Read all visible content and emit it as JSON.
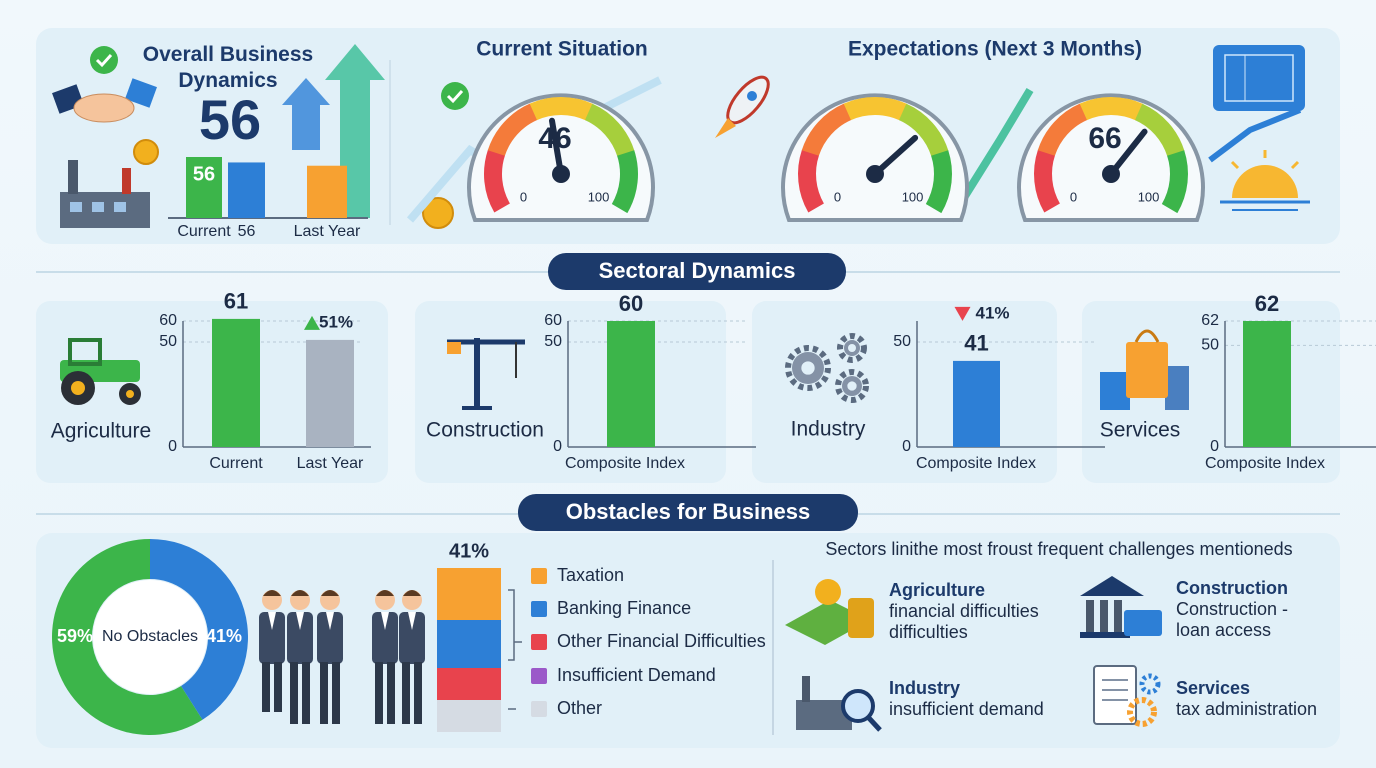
{
  "sections": {
    "sectoral": "Sectoral Dynamics"
  },
  "chart_data": [
    {
      "type": "bar",
      "title": "Overall Business Dynamics",
      "headline": "56",
      "categories": [
        "Current",
        "56",
        "Last Year"
      ],
      "values": [
        56,
        51,
        48
      ],
      "colors": [
        "#3cb54a",
        "#2d7fd6",
        "#f7a131"
      ]
    },
    {
      "type": "gauge",
      "title": "Current Situation",
      "values": [
        46
      ],
      "show_value": [
        true
      ],
      "ylim": [
        0,
        100
      ],
      "yticks": [
        0,
        100
      ]
    },
    {
      "type": "gauge",
      "title": "Expectations (Next 3 Months)",
      "values": [
        70,
        66
      ],
      "show_value": [
        false,
        true
      ],
      "ylim": [
        0,
        100
      ],
      "yticks": [
        0,
        100
      ]
    },
    {
      "type": "bar",
      "title": "Agriculture",
      "categories": [
        "Current",
        "Last Year"
      ],
      "values": [
        61,
        51
      ],
      "value_labels": [
        "61",
        "51%"
      ],
      "colors": [
        "#3cb54a",
        "#a9b3c1"
      ],
      "ylim": [
        0,
        60
      ],
      "yticks": [
        0,
        50,
        60
      ],
      "grid": true
    },
    {
      "type": "bar",
      "title": "Construction",
      "categories": [
        "Composite Index"
      ],
      "values": [
        60
      ],
      "colors": [
        "#3cb54a"
      ],
      "ylim": [
        0,
        60
      ],
      "yticks": [
        0,
        50,
        60
      ],
      "grid": true
    },
    {
      "type": "bar",
      "title": "Industry",
      "categories": [
        "Composite Index"
      ],
      "values": [
        41
      ],
      "annotation": "41%",
      "colors": [
        "#2d7fd6"
      ],
      "ylim": [
        0,
        60
      ],
      "yticks": [
        0,
        50
      ],
      "grid": true
    },
    {
      "type": "bar",
      "title": "Services",
      "categories": [
        "Composite Index"
      ],
      "values": [
        62
      ],
      "colors": [
        "#3cb54a"
      ],
      "ylim": [
        0,
        62
      ],
      "yticks": [
        0,
        50,
        62
      ],
      "grid": true
    },
    {
      "type": "donut",
      "title": "Obstacles for Business",
      "center_label": "No Obstacles",
      "values": [
        59,
        41
      ],
      "value_labels": [
        "59%",
        "41%"
      ],
      "colors": [
        "#3cb54a",
        "#2d7fd6"
      ]
    },
    {
      "type": "stacked_bar",
      "total_label": "41%",
      "series": [
        {
          "name": "Taxation",
          "color": "#f7a131",
          "values": [
            13
          ]
        },
        {
          "name": "Banking Finance",
          "color": "#2d7fd6",
          "values": [
            12
          ]
        },
        {
          "name": "Other Financial Difficulties",
          "color": "#e8434d",
          "values": [
            8
          ]
        },
        {
          "name": "Insufficient Demand",
          "color": "#9b59c9",
          "values": [
            0
          ]
        },
        {
          "name": "Other",
          "color": "#d5dbe3",
          "values": [
            8
          ]
        }
      ]
    }
  ],
  "challenges": {
    "heading": "Sectors linithe most froust frequent challenges mentioneds",
    "items": [
      {
        "sector": "Agriculture",
        "text": "financial difficulties difficulties"
      },
      {
        "sector": "Construction",
        "text": "Construction - loan access"
      },
      {
        "sector": "Industry",
        "text": "insufficient demand"
      },
      {
        "sector": "Services",
        "text": "tax administration"
      }
    ]
  }
}
